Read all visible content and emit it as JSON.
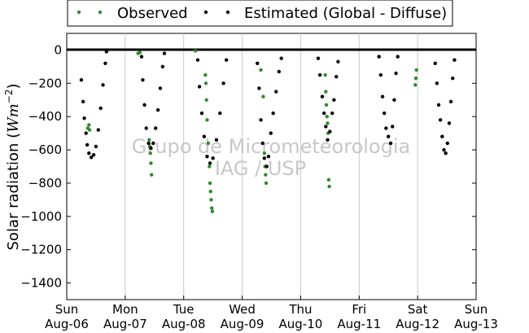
{
  "chart_data": {
    "type": "scatter",
    "title": "",
    "xlabel": "",
    "ylabel": "Solar radiation (",
    "ylabel_unit": "Wm",
    "ylabel_exp": "−2",
    "ylabel_close": ")",
    "ylim": [
      -1500,
      100
    ],
    "xlim": [
      0,
      7
    ],
    "yticks": [
      0,
      -200,
      -400,
      -600,
      -800,
      -1000,
      -1200,
      -1400
    ],
    "xticks": [
      {
        "day": "Sun",
        "date": "Aug-06"
      },
      {
        "day": "Mon",
        "date": "Aug-07"
      },
      {
        "day": "Tue",
        "date": "Aug-08"
      },
      {
        "day": "Wed",
        "date": "Aug-09"
      },
      {
        "day": "Thu",
        "date": "Aug-10"
      },
      {
        "day": "Fri",
        "date": "Aug-11"
      },
      {
        "day": "Sat",
        "date": "Aug-12"
      },
      {
        "day": "Sun",
        "date": "Aug-13"
      }
    ],
    "grid": "vertical",
    "legend_position": "top",
    "watermark": [
      "Grupo de Micrometeorologia",
      "IAG / USP"
    ],
    "series": [
      {
        "name": "Observed",
        "color": "#2e8b2e",
        "points": [
          [
            0.38,
            -450
          ],
          [
            0.36,
            -470
          ],
          [
            0.39,
            -480
          ],
          [
            1.22,
            -20
          ],
          [
            1.25,
            -15
          ],
          [
            1.41,
            -540
          ],
          [
            1.42,
            -580
          ],
          [
            1.43,
            -620
          ],
          [
            1.44,
            -680
          ],
          [
            1.45,
            -750
          ],
          [
            2.2,
            -5
          ],
          [
            2.37,
            -150
          ],
          [
            2.38,
            -200
          ],
          [
            2.39,
            -300
          ],
          [
            2.4,
            -420
          ],
          [
            2.42,
            -560
          ],
          [
            2.44,
            -700
          ],
          [
            2.45,
            -800
          ],
          [
            2.46,
            -850
          ],
          [
            2.47,
            -900
          ],
          [
            2.48,
            -950
          ],
          [
            2.49,
            -970
          ],
          [
            3.36,
            -280
          ],
          [
            3.38,
            -620
          ],
          [
            3.39,
            -700
          ],
          [
            3.4,
            -750
          ],
          [
            3.41,
            -800
          ],
          [
            3.32,
            -120
          ],
          [
            4.42,
            -150
          ],
          [
            4.43,
            -250
          ],
          [
            4.45,
            -400
          ],
          [
            4.47,
            -500
          ],
          [
            4.48,
            -780
          ],
          [
            4.49,
            -820
          ],
          [
            4.44,
            -330
          ],
          [
            4.46,
            -440
          ],
          [
            5.97,
            -170
          ],
          [
            5.98,
            -120
          ],
          [
            5.96,
            -210
          ]
        ]
      },
      {
        "name": "Estimated (Global - Diffuse)",
        "color": "#000000",
        "points": [
          [
            0.25,
            -180
          ],
          [
            0.28,
            -310
          ],
          [
            0.3,
            -410
          ],
          [
            0.33,
            -500
          ],
          [
            0.35,
            -570
          ],
          [
            0.38,
            -620
          ],
          [
            0.42,
            -645
          ],
          [
            0.46,
            -630
          ],
          [
            0.5,
            -580
          ],
          [
            0.54,
            -480
          ],
          [
            0.58,
            -350
          ],
          [
            0.62,
            -210
          ],
          [
            0.66,
            -80
          ],
          [
            0.68,
            -10
          ],
          [
            1.28,
            -40
          ],
          [
            1.3,
            -180
          ],
          [
            1.33,
            -330
          ],
          [
            1.36,
            -470
          ],
          [
            1.4,
            -560
          ],
          [
            1.44,
            -590
          ],
          [
            1.48,
            -560
          ],
          [
            1.52,
            -470
          ],
          [
            1.56,
            -360
          ],
          [
            1.6,
            -230
          ],
          [
            1.64,
            -100
          ],
          [
            1.67,
            -20
          ],
          [
            2.24,
            -60
          ],
          [
            2.27,
            -220
          ],
          [
            2.31,
            -380
          ],
          [
            2.35,
            -520
          ],
          [
            2.4,
            -640
          ],
          [
            2.45,
            -680
          ],
          [
            2.5,
            -650
          ],
          [
            2.56,
            -540
          ],
          [
            2.62,
            -380
          ],
          [
            2.68,
            -200
          ],
          [
            2.73,
            -60
          ],
          [
            3.26,
            -80
          ],
          [
            3.29,
            -230
          ],
          [
            3.32,
            -420
          ],
          [
            3.35,
            -560
          ],
          [
            3.38,
            -650
          ],
          [
            3.42,
            -700
          ],
          [
            3.45,
            -640
          ],
          [
            3.49,
            -500
          ],
          [
            3.53,
            -380
          ],
          [
            3.58,
            -250
          ],
          [
            3.63,
            -130
          ],
          [
            3.67,
            -50
          ],
          [
            4.3,
            -50
          ],
          [
            4.33,
            -150
          ],
          [
            4.37,
            -280
          ],
          [
            4.4,
            -380
          ],
          [
            4.43,
            -460
          ],
          [
            4.46,
            -540
          ],
          [
            4.5,
            -490
          ],
          [
            4.54,
            -380
          ],
          [
            4.57,
            -300
          ],
          [
            4.61,
            -160
          ],
          [
            4.64,
            -70
          ],
          [
            5.34,
            -40
          ],
          [
            5.37,
            -150
          ],
          [
            5.4,
            -280
          ],
          [
            5.43,
            -380
          ],
          [
            5.46,
            -470
          ],
          [
            5.5,
            -520
          ],
          [
            5.54,
            -560
          ],
          [
            5.57,
            -460
          ],
          [
            5.6,
            -300
          ],
          [
            5.63,
            -140
          ],
          [
            5.66,
            -40
          ],
          [
            6.3,
            -80
          ],
          [
            6.33,
            -200
          ],
          [
            6.36,
            -330
          ],
          [
            6.39,
            -420
          ],
          [
            6.42,
            -520
          ],
          [
            6.45,
            -600
          ],
          [
            6.48,
            -620
          ],
          [
            6.51,
            -560
          ],
          [
            6.54,
            -440
          ],
          [
            6.57,
            -310
          ],
          [
            6.6,
            -170
          ],
          [
            6.63,
            -60
          ]
        ]
      }
    ]
  }
}
